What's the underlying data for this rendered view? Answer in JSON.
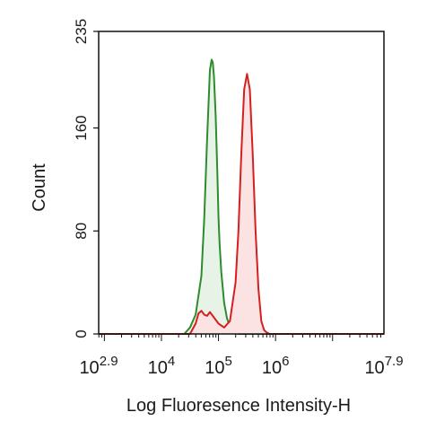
{
  "chart_data": {
    "type": "area",
    "xlabel": "Log Fluoresence Intensity-H",
    "ylabel": "Count",
    "x_scale": "log10",
    "xlim": [
      2.9,
      7.9
    ],
    "ylim": [
      0,
      235
    ],
    "x_ticks": [
      {
        "exp": 2.9,
        "base": "10",
        "sup": "2.9"
      },
      {
        "exp": 4,
        "base": "10",
        "sup": "4"
      },
      {
        "exp": 5,
        "base": "10",
        "sup": "5"
      },
      {
        "exp": 6,
        "base": "10",
        "sup": "6"
      },
      {
        "exp": 7.9,
        "base": "10",
        "sup": "7.9"
      }
    ],
    "y_ticks": [
      0,
      80,
      160,
      235
    ],
    "grid": false,
    "series": [
      {
        "color": "#2e8b2e",
        "fill": "#e8f3e8",
        "x": [
          2.9,
          4.4,
          4.5,
          4.6,
          4.7,
          4.75,
          4.8,
          4.85,
          4.88,
          4.9,
          4.92,
          4.95,
          4.98,
          5.0,
          5.02,
          5.05,
          5.1,
          5.15,
          5.2,
          5.25,
          5.3,
          5.35,
          5.4,
          6.0,
          7.9
        ],
        "y": [
          0,
          0,
          5,
          15,
          45,
          90,
          150,
          205,
          213,
          211,
          200,
          170,
          125,
          90,
          70,
          48,
          24,
          12,
          6,
          3,
          1,
          0,
          0,
          0,
          0
        ]
      },
      {
        "color": "#d42020",
        "fill": "#fbe3e3",
        "x": [
          2.9,
          4.5,
          4.6,
          4.65,
          4.7,
          4.75,
          4.8,
          4.85,
          4.9,
          5.0,
          5.1,
          5.2,
          5.3,
          5.35,
          5.4,
          5.45,
          5.5,
          5.55,
          5.6,
          5.65,
          5.7,
          5.75,
          5.8,
          5.85,
          5.9,
          6.0,
          7.9
        ],
        "y": [
          0,
          0,
          8,
          16,
          18,
          15,
          14,
          17,
          14,
          8,
          5,
          10,
          40,
          80,
          140,
          190,
          202,
          190,
          140,
          80,
          35,
          10,
          3,
          1,
          0,
          0,
          0
        ]
      }
    ]
  }
}
